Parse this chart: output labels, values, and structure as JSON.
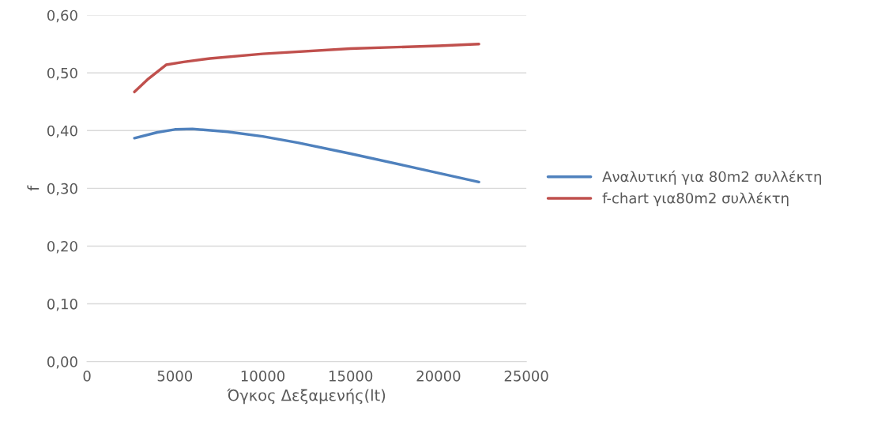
{
  "chart_data": {
    "type": "line",
    "xlabel": "Όγκος Δεξαμενής(lt)",
    "ylabel": "f",
    "xlim": [
      0,
      25000
    ],
    "xticks": [
      0,
      5000,
      10000,
      15000,
      20000,
      25000
    ],
    "ylim": [
      0,
      0.6
    ],
    "yticks": [
      {
        "value": 0,
        "label": "0,00"
      },
      {
        "value": 0.1,
        "label": "0,10"
      },
      {
        "value": 0.2,
        "label": "0,20"
      },
      {
        "value": 0.3,
        "label": "0,30"
      },
      {
        "value": 0.4,
        "label": "0,40"
      },
      {
        "value": 0.5,
        "label": "0,50"
      },
      {
        "value": 0.6,
        "label": "0,60"
      }
    ],
    "grid": "y",
    "legend": "right",
    "marker": "none",
    "line_style": "solid",
    "series": [
      {
        "name": "Αναλυτική για 80m2 συλλέκτη",
        "color": "#4f81bd",
        "x": [
          2700,
          4000,
          5000,
          6000,
          8000,
          10000,
          12000,
          15000,
          18000,
          22300
        ],
        "values": [
          0.387,
          0.397,
          0.402,
          0.403,
          0.398,
          0.39,
          0.379,
          0.36,
          0.34,
          0.311
        ]
      },
      {
        "name": "f-chart για80m2 συλλέκτη",
        "color": "#c0504d",
        "x": [
          2700,
          3500,
          4500,
          5500,
          7000,
          10000,
          15000,
          20000,
          22300
        ],
        "values": [
          0.467,
          0.49,
          0.514,
          0.519,
          0.525,
          0.533,
          0.542,
          0.547,
          0.55
        ]
      }
    ]
  }
}
